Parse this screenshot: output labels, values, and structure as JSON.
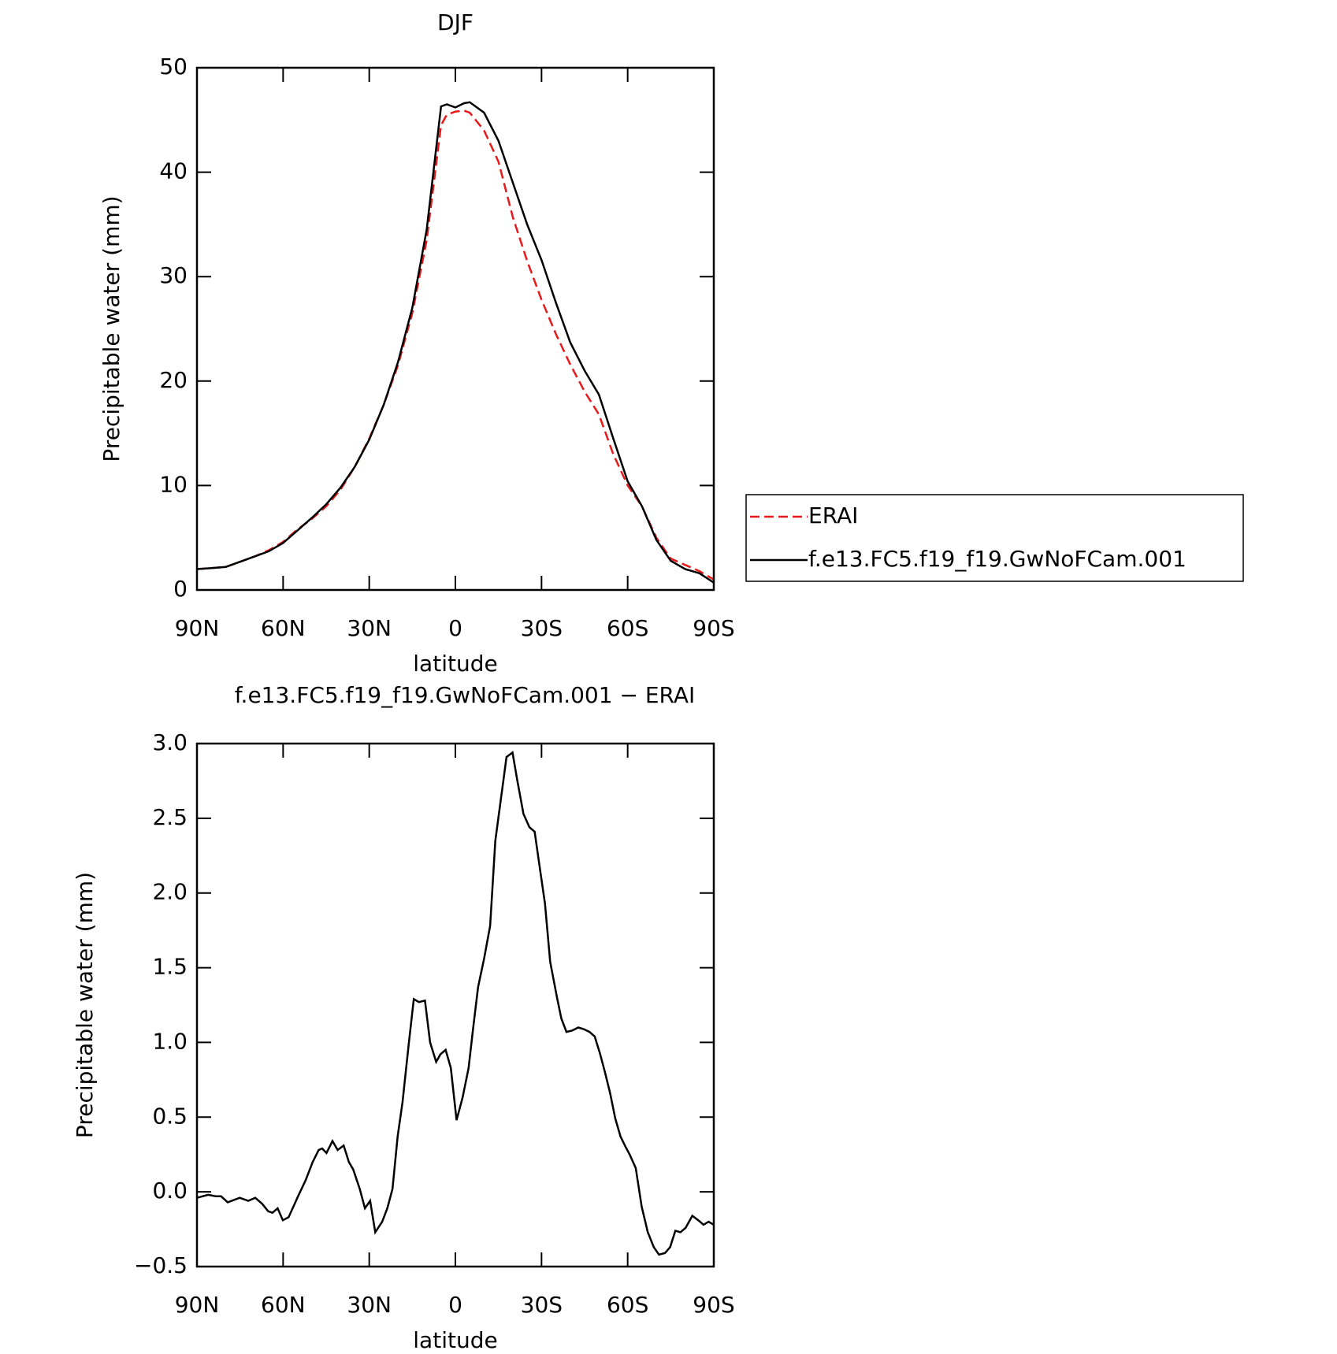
{
  "chart_data": [
    {
      "type": "line",
      "title": "DJF",
      "xlabel": "latitude",
      "ylabel": "Precipitable water (mm)",
      "x": [
        90,
        85,
        80,
        75,
        70,
        65,
        60,
        55,
        50,
        45,
        40,
        35,
        30,
        25,
        20,
        15,
        10,
        5,
        3,
        0,
        -3,
        -5,
        -10,
        -15,
        -20,
        -25,
        -30,
        -35,
        -40,
        -45,
        -50,
        -55,
        -60,
        -65,
        -70,
        -75,
        -80,
        -85,
        -90
      ],
      "series": [
        {
          "name": "ERAI",
          "color": "#e8191b",
          "linestyle": "dashed",
          "values": [
            2.0,
            2.1,
            2.2,
            2.7,
            3.2,
            3.8,
            4.6,
            5.8,
            6.8,
            8.0,
            9.6,
            11.8,
            14.5,
            17.7,
            21.5,
            26.5,
            33.5,
            44.5,
            45.5,
            45.8,
            45.9,
            45.7,
            44.0,
            41.0,
            35.7,
            31.5,
            27.8,
            24.5,
            21.6,
            19.0,
            16.8,
            13.0,
            10.0,
            8.0,
            5.0,
            3.0,
            2.4,
            1.8,
            1.0
          ]
        },
        {
          "name": "f.e13.FC5.f19_f19.GwNoFCam.001",
          "color": "#000000",
          "linestyle": "solid",
          "values": [
            2.0,
            2.1,
            2.2,
            2.7,
            3.2,
            3.7,
            4.5,
            5.7,
            6.9,
            8.2,
            9.8,
            11.8,
            14.4,
            17.7,
            21.8,
            27.0,
            34.5,
            46.3,
            46.5,
            46.2,
            46.6,
            46.7,
            45.7,
            43.0,
            39.0,
            35.0,
            31.6,
            27.5,
            23.7,
            21.0,
            18.7,
            14.5,
            10.4,
            8.0,
            4.8,
            2.8,
            2.0,
            1.6,
            0.7
          ]
        }
      ],
      "xlim": [
        90,
        -90
      ],
      "xticks": [
        {
          "value": 90,
          "label": "90N"
        },
        {
          "value": 60,
          "label": "60N"
        },
        {
          "value": 30,
          "label": "30N"
        },
        0,
        {
          "value": -30,
          "label": "30S"
        },
        {
          "value": -60,
          "label": "60S"
        },
        {
          "value": -90,
          "label": "90S"
        }
      ],
      "ylim": [
        0,
        50
      ],
      "yticks": [
        0,
        10,
        20,
        30,
        40,
        50
      ],
      "legend": "right"
    },
    {
      "type": "line",
      "title": "f.e13.FC5.f19_f19.GwNoFCam.001 − ERAI",
      "xlabel": "latitude",
      "ylabel": "Precipitable water (mm)",
      "x": [
        90,
        86.1,
        83.4,
        81.6,
        79.3,
        75.1,
        72.1,
        69.7,
        67.3,
        65.2,
        63.7,
        61.9,
        60.1,
        58.1,
        54.8,
        52.1,
        49.7,
        47.6,
        46.4,
        44.9,
        42.8,
        41.0,
        38.9,
        37.1,
        35.6,
        33.3,
        31.5,
        29.7,
        27.9,
        25.5,
        23.7,
        21.9,
        20.1,
        18.4,
        16.3,
        14.5,
        12.7,
        10.6,
        8.8,
        6.7,
        5.2,
        3.4,
        1.6,
        -0.4,
        -2.5,
        -4.6,
        -6.1,
        -7.9,
        -10.0,
        -12.1,
        -13.9,
        -16.0,
        -17.8,
        -19.9,
        -21.6,
        -23.7,
        -25.8,
        -27.6,
        -29.4,
        -31.2,
        -33.0,
        -35.4,
        -36.9,
        -38.7,
        -40.7,
        -42.8,
        -44.6,
        -46.7,
        -48.5,
        -50.3,
        -52.1,
        -53.9,
        -55.7,
        -57.5,
        -59.3,
        -60.7,
        -62.8,
        -64.9,
        -67.0,
        -69.1,
        -70.9,
        -73.0,
        -74.8,
        -76.6,
        -78.4,
        -80.2,
        -82.5,
        -84.6,
        -86.4,
        -88.2,
        -90
      ],
      "series": [
        {
          "color": "#000000",
          "linestyle": "solid",
          "values": [
            -0.04,
            -0.02,
            -0.03,
            -0.03,
            -0.07,
            -0.04,
            -0.06,
            -0.04,
            -0.08,
            -0.13,
            -0.14,
            -0.11,
            -0.19,
            -0.17,
            -0.03,
            0.08,
            0.2,
            0.28,
            0.29,
            0.26,
            0.34,
            0.28,
            0.31,
            0.2,
            0.15,
            0.02,
            -0.11,
            -0.06,
            -0.27,
            -0.2,
            -0.11,
            0.02,
            0.37,
            0.6,
            0.98,
            1.29,
            1.27,
            1.28,
            1.0,
            0.87,
            0.92,
            0.95,
            0.83,
            0.48,
            0.63,
            0.83,
            1.08,
            1.37,
            1.56,
            1.78,
            2.35,
            2.65,
            2.91,
            2.94,
            2.75,
            2.53,
            2.44,
            2.41,
            2.17,
            1.93,
            1.54,
            1.3,
            1.16,
            1.07,
            1.08,
            1.1,
            1.09,
            1.07,
            1.04,
            0.93,
            0.8,
            0.66,
            0.49,
            0.37,
            0.3,
            0.25,
            0.16,
            -0.1,
            -0.27,
            -0.37,
            -0.42,
            -0.41,
            -0.37,
            -0.26,
            -0.27,
            -0.24,
            -0.16,
            -0.19,
            -0.22,
            -0.2,
            -0.22
          ]
        }
      ],
      "xlim": [
        90,
        -90
      ],
      "xticks": [
        {
          "value": 90,
          "label": "90N"
        },
        {
          "value": 60,
          "label": "60N"
        },
        {
          "value": 30,
          "label": "30N"
        },
        0,
        {
          "value": -30,
          "label": "30S"
        },
        {
          "value": -60,
          "label": "60S"
        },
        {
          "value": -90,
          "label": "90S"
        }
      ],
      "ylim": [
        -0.5,
        3
      ],
      "yticks": [
        {
          "value": -0.5,
          "label": "−0.5"
        },
        {
          "value": 0,
          "label": "0.0"
        },
        {
          "value": 0.5,
          "label": "0.5"
        },
        {
          "value": 1,
          "label": "1.0"
        },
        {
          "value": 1.5,
          "label": "1.5"
        },
        {
          "value": 2,
          "label": "2.0"
        },
        {
          "value": 2.5,
          "label": "2.5"
        },
        {
          "value": 3,
          "label": "3.0"
        }
      ]
    }
  ]
}
